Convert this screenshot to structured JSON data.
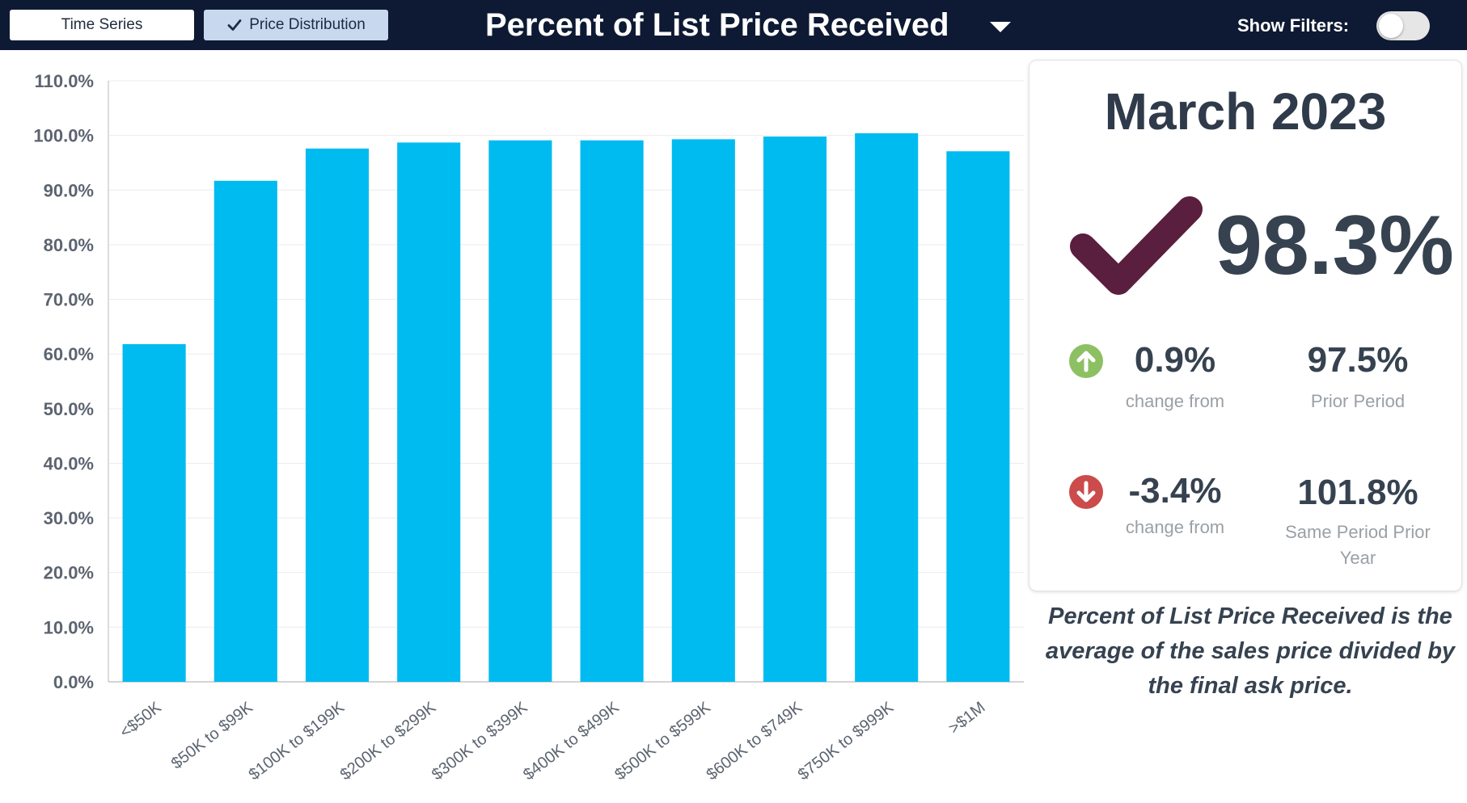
{
  "toolbar": {
    "time_series_label": "Time Series",
    "price_distribution_label": "Price Distribution",
    "title": "Percent of List Price Received",
    "show_filters_label": "Show Filters:",
    "show_filters_on": false
  },
  "chart_data": {
    "type": "bar",
    "title": "",
    "xlabel": "",
    "ylabel": "",
    "categories": [
      "<$50K",
      "$50K to $99K",
      "$100K to $199K",
      "$200K to $299K",
      "$300K to $399K",
      "$400K to $499K",
      "$500K to $599K",
      "$600K to $749K",
      "$750K to $999K",
      ">$1M"
    ],
    "values": [
      61.8,
      91.7,
      97.6,
      98.7,
      99.1,
      99.1,
      99.3,
      99.8,
      100.4,
      97.1
    ],
    "ylim": [
      0,
      110
    ],
    "yticks": [
      "0.0%",
      "10.0%",
      "20.0%",
      "30.0%",
      "40.0%",
      "50.0%",
      "60.0%",
      "70.0%",
      "80.0%",
      "90.0%",
      "100.0%",
      "110.0%"
    ],
    "grid": true,
    "legend": "none",
    "bar_color": "#00bbf0"
  },
  "summary": {
    "period": "March 2023",
    "value": "98.3%",
    "check_color": "#5a1e3e",
    "change1": {
      "value": "0.9%",
      "label": "change from",
      "direction": "up",
      "color": "#8dc063"
    },
    "prior1": {
      "value": "97.5%",
      "label": "Prior Period"
    },
    "change2": {
      "value": "-3.4%",
      "label": "change from",
      "direction": "down",
      "color": "#cc4b4b"
    },
    "prior2": {
      "value": "101.8%",
      "label": "Same Period Prior Year"
    },
    "description": "Percent of List Price Received is the average of the sales price divided by the final ask price."
  }
}
